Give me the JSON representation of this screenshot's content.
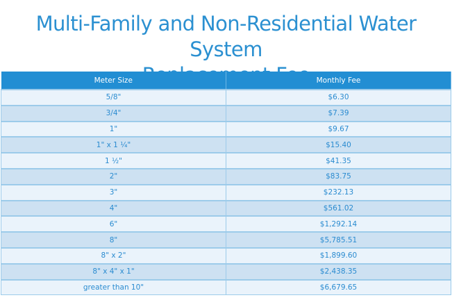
{
  "title": [
    "Multi-Family and Non-Residential Water System",
    "Replacement Fee"
  ],
  "colors": {
    "accent": "#228ed3",
    "row_light": "#eaf3fb",
    "row_dark": "#cde1f2"
  },
  "table": {
    "headers": [
      "Meter Size",
      "Monthly Fee"
    ],
    "rows": [
      [
        "5/8\"",
        "$6.30"
      ],
      [
        "3/4\"",
        "$7.39"
      ],
      [
        "1\"",
        "$9.67"
      ],
      [
        "1\" x 1 ¼\"",
        "$15.40"
      ],
      [
        "1 ½\"",
        "$41.35"
      ],
      [
        "2\"",
        "$83.75"
      ],
      [
        "3\"",
        "$232.13"
      ],
      [
        "4\"",
        "$561.02"
      ],
      [
        "6\"",
        "$1,292.14"
      ],
      [
        "8\"",
        "$5,785.51"
      ],
      [
        "8\" x 2\"",
        "$1,899.60"
      ],
      [
        "8\" x 4\" x 1\"",
        "$2,438.35"
      ],
      [
        "greater than 10\"",
        "$6,679.65"
      ]
    ]
  }
}
